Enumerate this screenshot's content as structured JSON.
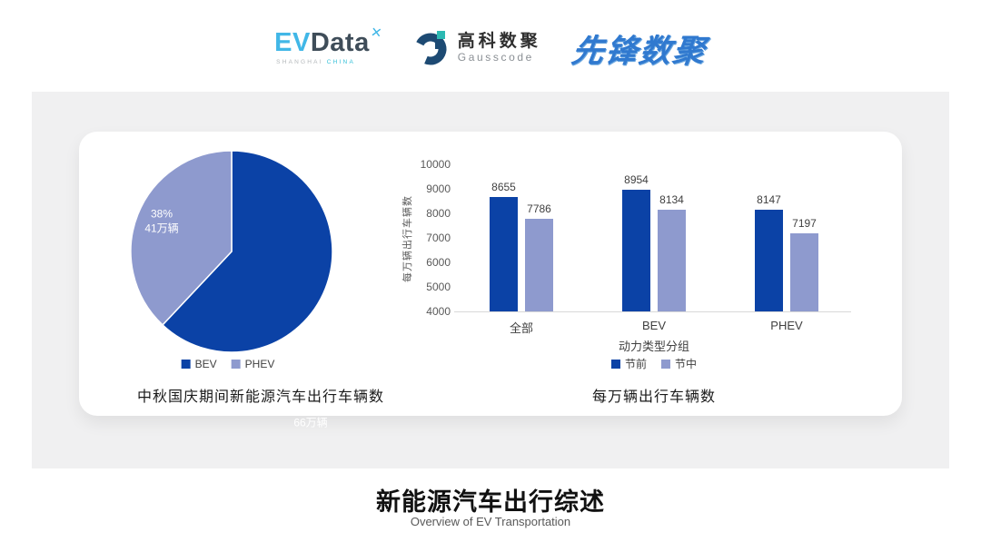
{
  "header": {
    "evdata": {
      "ev": "EV",
      "data": "Data",
      "spark": "✕",
      "sub_left": "SHANGHAI",
      "sub_right": "CHINA"
    },
    "gausscode": {
      "cn": "高科数聚",
      "en": "Gausscode"
    },
    "pioneer": "先锋数聚"
  },
  "footer": {
    "title": "新能源汽车出行综述",
    "subtitle": "Overview of EV Transportation"
  },
  "colors": {
    "primary": "#0b42a6",
    "secondary": "#8e9ace",
    "panel": "#f0f0f1",
    "axis": "#d9d9d9"
  },
  "chart_data": [
    {
      "type": "pie",
      "title": "中秋国庆期间新能源汽车出行车辆数",
      "slices": [
        {
          "label": "BEV",
          "value": 62,
          "percent": "62%",
          "amount": "66万辆",
          "color_key": "primary"
        },
        {
          "label": "PHEV",
          "value": 38,
          "percent": "38%",
          "amount": "41万辆",
          "color_key": "secondary"
        }
      ],
      "legend_position": "bottom",
      "start_angle_deg": 0
    },
    {
      "type": "bar",
      "title": "每万辆出行车辆数",
      "xlabel": "动力类型分组",
      "ylabel": "每万辆出行车辆数",
      "ylim": [
        4000,
        10000
      ],
      "ytick_step": 1000,
      "grid": false,
      "legend_position": "bottom",
      "categories": [
        "全部",
        "BEV",
        "PHEV"
      ],
      "series": [
        {
          "name": "节前",
          "values": [
            8655,
            8954,
            8147
          ],
          "color_key": "primary"
        },
        {
          "name": "节中",
          "values": [
            7786,
            8134,
            7197
          ],
          "color_key": "secondary"
        }
      ]
    }
  ]
}
